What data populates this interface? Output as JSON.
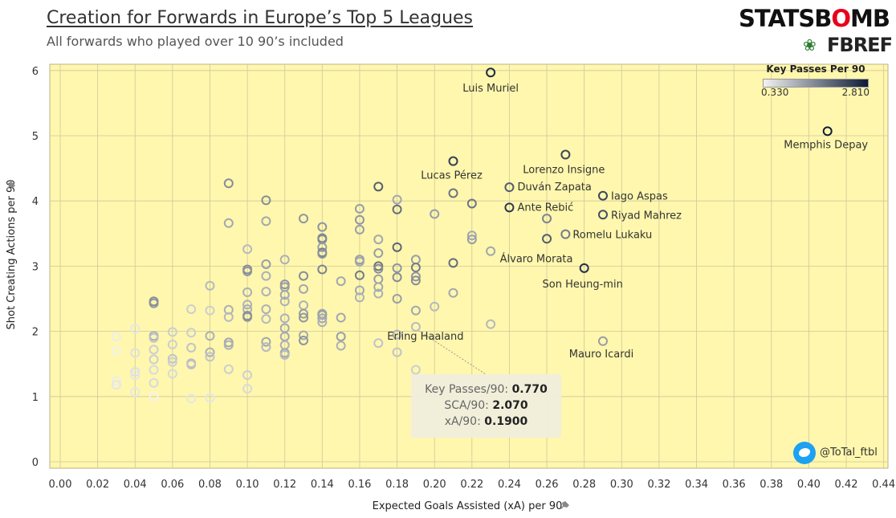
{
  "header": {
    "title": "Creation for Forwards in Europe’s Top 5 Leagues",
    "subtitle": "All forwards who played over 10 90’s included"
  },
  "logos": {
    "statsbomb_a": "STATSB",
    "statsbomb_o": "O",
    "statsbomb_b": "MB",
    "fbref": "FBREF"
  },
  "legend": {
    "title": "Key Passes Per 90",
    "min": "0.330",
    "max": "2.810",
    "color_low": "#f2f2f2",
    "color_high": "#0d1b36"
  },
  "tooltip": {
    "key_passes_label": "Key Passes/90:",
    "key_passes_value": "0.770",
    "sca_label": "SCA/90:",
    "sca_value": "2.070",
    "xa_label": "xA/90:",
    "xa_value": "0.1900"
  },
  "credit": {
    "handle": "@ToTal_ftbl"
  },
  "colors": {
    "plot_bg": "#fff7ad",
    "grid": "#cfc79a"
  },
  "chart_data": {
    "type": "scatter",
    "xlabel": "Expected Goals Assisted (xA) per 90",
    "ylabel": "Shot Creating Actions per 90",
    "xlim": [
      0.0,
      0.45
    ],
    "ylim": [
      -0.1,
      6.15
    ],
    "x_ticks": [
      "0.00",
      "0.02",
      "0.04",
      "0.06",
      "0.08",
      "0.10",
      "0.12",
      "0.14",
      "0.16",
      "0.18",
      "0.20",
      "0.22",
      "0.24",
      "0.26",
      "0.28",
      "0.30",
      "0.32",
      "0.34",
      "0.36",
      "0.38",
      "0.40",
      "0.42",
      "0.44"
    ],
    "y_ticks": [
      "0",
      "1",
      "2",
      "3",
      "4",
      "5",
      "6"
    ],
    "grid": true,
    "legend_position": "top-right",
    "color_encoding": "Key Passes Per 90",
    "labeled_points": [
      {
        "name": "Luis Muriel",
        "x": 0.23,
        "y": 5.97,
        "kp": 2.6
      },
      {
        "name": "Memphis Depay",
        "x": 0.41,
        "y": 5.07,
        "kp": 2.81
      },
      {
        "name": "Lorenzo Insigne",
        "x": 0.27,
        "y": 4.71,
        "kp": 2.2
      },
      {
        "name": "Lucas Pérez",
        "x": 0.21,
        "y": 4.61,
        "kp": 2.3
      },
      {
        "name": "Duván Zapata",
        "x": 0.24,
        "y": 4.21,
        "kp": 1.9
      },
      {
        "name": "Iago Aspas",
        "x": 0.29,
        "y": 4.08,
        "kp": 2.2
      },
      {
        "name": "Ante Rebić",
        "x": 0.24,
        "y": 3.9,
        "kp": 2.4
      },
      {
        "name": "Riyad Mahrez",
        "x": 0.29,
        "y": 3.79,
        "kp": 2.1
      },
      {
        "name": "Romelu Lukaku",
        "x": 0.27,
        "y": 3.49,
        "kp": 1.5
      },
      {
        "name": "Álvaro Morata",
        "x": 0.26,
        "y": 3.42,
        "kp": 1.9
      },
      {
        "name": "Son Heung-min",
        "x": 0.28,
        "y": 2.97,
        "kp": 2.5
      },
      {
        "name": "Mauro Icardi",
        "x": 0.29,
        "y": 1.85,
        "kp": 1.1
      },
      {
        "name": "Erling Haaland",
        "x": 0.19,
        "y": 2.07,
        "kp": 0.77
      }
    ],
    "points": [
      {
        "x": 0.03,
        "y": 1.92,
        "kp": 0.35
      },
      {
        "x": 0.03,
        "y": 1.71,
        "kp": 0.33
      },
      {
        "x": 0.03,
        "y": 1.24,
        "kp": 0.35
      },
      {
        "x": 0.03,
        "y": 1.18,
        "kp": 0.4
      },
      {
        "x": 0.04,
        "y": 2.04,
        "kp": 0.4
      },
      {
        "x": 0.04,
        "y": 1.67,
        "kp": 0.45
      },
      {
        "x": 0.04,
        "y": 1.38,
        "kp": 0.45
      },
      {
        "x": 0.04,
        "y": 1.33,
        "kp": 0.4
      },
      {
        "x": 0.04,
        "y": 1.07,
        "kp": 0.4
      },
      {
        "x": 0.05,
        "y": 2.46,
        "kp": 1.3
      },
      {
        "x": 0.05,
        "y": 2.43,
        "kp": 1.2
      },
      {
        "x": 0.05,
        "y": 1.93,
        "kp": 0.9
      },
      {
        "x": 0.05,
        "y": 1.9,
        "kp": 0.7
      },
      {
        "x": 0.05,
        "y": 1.72,
        "kp": 0.6
      },
      {
        "x": 0.05,
        "y": 1.57,
        "kp": 0.6
      },
      {
        "x": 0.05,
        "y": 1.41,
        "kp": 0.5
      },
      {
        "x": 0.05,
        "y": 1.21,
        "kp": 0.5
      },
      {
        "x": 0.05,
        "y": 1.0,
        "kp": 0.33
      },
      {
        "x": 0.06,
        "y": 1.99,
        "kp": 0.6
      },
      {
        "x": 0.06,
        "y": 1.8,
        "kp": 0.6
      },
      {
        "x": 0.06,
        "y": 1.58,
        "kp": 0.7
      },
      {
        "x": 0.06,
        "y": 1.53,
        "kp": 0.6
      },
      {
        "x": 0.06,
        "y": 1.35,
        "kp": 0.5
      },
      {
        "x": 0.07,
        "y": 2.34,
        "kp": 0.6
      },
      {
        "x": 0.07,
        "y": 1.98,
        "kp": 0.6
      },
      {
        "x": 0.07,
        "y": 1.75,
        "kp": 0.7
      },
      {
        "x": 0.07,
        "y": 1.51,
        "kp": 0.8
      },
      {
        "x": 0.07,
        "y": 1.49,
        "kp": 0.7
      },
      {
        "x": 0.07,
        "y": 0.97,
        "kp": 0.4
      },
      {
        "x": 0.08,
        "y": 2.7,
        "kp": 0.8
      },
      {
        "x": 0.08,
        "y": 2.32,
        "kp": 0.6
      },
      {
        "x": 0.08,
        "y": 1.93,
        "kp": 0.9
      },
      {
        "x": 0.08,
        "y": 1.68,
        "kp": 0.9
      },
      {
        "x": 0.08,
        "y": 1.61,
        "kp": 0.7
      },
      {
        "x": 0.08,
        "y": 0.98,
        "kp": 0.4
      },
      {
        "x": 0.09,
        "y": 4.27,
        "kp": 1.3
      },
      {
        "x": 0.09,
        "y": 3.66,
        "kp": 1.0
      },
      {
        "x": 0.09,
        "y": 2.33,
        "kp": 0.9
      },
      {
        "x": 0.09,
        "y": 2.22,
        "kp": 0.8
      },
      {
        "x": 0.09,
        "y": 1.83,
        "kp": 1.0
      },
      {
        "x": 0.09,
        "y": 1.79,
        "kp": 0.9
      },
      {
        "x": 0.09,
        "y": 1.42,
        "kp": 0.6
      },
      {
        "x": 0.1,
        "y": 3.26,
        "kp": 0.8
      },
      {
        "x": 0.1,
        "y": 2.95,
        "kp": 1.3
      },
      {
        "x": 0.1,
        "y": 2.92,
        "kp": 1.2
      },
      {
        "x": 0.1,
        "y": 2.6,
        "kp": 0.9
      },
      {
        "x": 0.1,
        "y": 2.41,
        "kp": 0.9
      },
      {
        "x": 0.1,
        "y": 2.34,
        "kp": 0.9
      },
      {
        "x": 0.1,
        "y": 2.24,
        "kp": 1.3
      },
      {
        "x": 0.1,
        "y": 2.22,
        "kp": 1.2
      },
      {
        "x": 0.1,
        "y": 1.33,
        "kp": 0.6
      },
      {
        "x": 0.1,
        "y": 1.12,
        "kp": 0.5
      },
      {
        "x": 0.11,
        "y": 4.01,
        "kp": 1.3
      },
      {
        "x": 0.11,
        "y": 3.69,
        "kp": 1.0
      },
      {
        "x": 0.11,
        "y": 3.03,
        "kp": 1.1
      },
      {
        "x": 0.11,
        "y": 2.85,
        "kp": 0.9
      },
      {
        "x": 0.11,
        "y": 2.61,
        "kp": 0.9
      },
      {
        "x": 0.11,
        "y": 2.34,
        "kp": 0.9
      },
      {
        "x": 0.11,
        "y": 2.19,
        "kp": 0.8
      },
      {
        "x": 0.11,
        "y": 1.84,
        "kp": 1.0
      },
      {
        "x": 0.11,
        "y": 1.76,
        "kp": 0.8
      },
      {
        "x": 0.12,
        "y": 3.1,
        "kp": 0.9
      },
      {
        "x": 0.12,
        "y": 2.72,
        "kp": 1.2
      },
      {
        "x": 0.12,
        "y": 2.68,
        "kp": 1.1
      },
      {
        "x": 0.12,
        "y": 2.56,
        "kp": 1.0
      },
      {
        "x": 0.12,
        "y": 2.46,
        "kp": 0.9
      },
      {
        "x": 0.12,
        "y": 2.2,
        "kp": 0.9
      },
      {
        "x": 0.12,
        "y": 2.05,
        "kp": 1.0
      },
      {
        "x": 0.12,
        "y": 1.92,
        "kp": 1.0
      },
      {
        "x": 0.12,
        "y": 1.79,
        "kp": 0.9
      },
      {
        "x": 0.12,
        "y": 1.67,
        "kp": 1.0
      },
      {
        "x": 0.12,
        "y": 1.64,
        "kp": 0.8
      },
      {
        "x": 0.13,
        "y": 3.73,
        "kp": 1.2
      },
      {
        "x": 0.13,
        "y": 2.85,
        "kp": 1.3
      },
      {
        "x": 0.13,
        "y": 2.65,
        "kp": 1.0
      },
      {
        "x": 0.13,
        "y": 2.4,
        "kp": 0.9
      },
      {
        "x": 0.13,
        "y": 2.27,
        "kp": 1.1
      },
      {
        "x": 0.13,
        "y": 2.21,
        "kp": 1.2
      },
      {
        "x": 0.13,
        "y": 1.94,
        "kp": 1.0
      },
      {
        "x": 0.13,
        "y": 1.86,
        "kp": 1.2
      },
      {
        "x": 0.14,
        "y": 3.6,
        "kp": 1.2
      },
      {
        "x": 0.14,
        "y": 3.43,
        "kp": 1.4
      },
      {
        "x": 0.14,
        "y": 3.41,
        "kp": 1.3
      },
      {
        "x": 0.14,
        "y": 3.29,
        "kp": 1.1
      },
      {
        "x": 0.14,
        "y": 3.21,
        "kp": 1.5
      },
      {
        "x": 0.14,
        "y": 3.19,
        "kp": 1.2
      },
      {
        "x": 0.14,
        "y": 2.95,
        "kp": 1.4
      },
      {
        "x": 0.14,
        "y": 2.27,
        "kp": 1.0
      },
      {
        "x": 0.14,
        "y": 2.25,
        "kp": 1.1
      },
      {
        "x": 0.14,
        "y": 2.2,
        "kp": 1.0
      },
      {
        "x": 0.14,
        "y": 2.14,
        "kp": 0.9
      },
      {
        "x": 0.15,
        "y": 2.77,
        "kp": 1.0
      },
      {
        "x": 0.15,
        "y": 2.21,
        "kp": 1.0
      },
      {
        "x": 0.15,
        "y": 1.92,
        "kp": 1.1
      },
      {
        "x": 0.15,
        "y": 1.78,
        "kp": 0.9
      },
      {
        "x": 0.16,
        "y": 3.88,
        "kp": 1.1
      },
      {
        "x": 0.16,
        "y": 3.71,
        "kp": 1.2
      },
      {
        "x": 0.16,
        "y": 3.56,
        "kp": 1.1
      },
      {
        "x": 0.16,
        "y": 3.1,
        "kp": 1.1
      },
      {
        "x": 0.16,
        "y": 3.07,
        "kp": 1.0
      },
      {
        "x": 0.16,
        "y": 2.86,
        "kp": 1.5
      },
      {
        "x": 0.16,
        "y": 2.63,
        "kp": 1.0
      },
      {
        "x": 0.16,
        "y": 2.52,
        "kp": 0.9
      },
      {
        "x": 0.17,
        "y": 4.22,
        "kp": 1.9
      },
      {
        "x": 0.17,
        "y": 3.41,
        "kp": 1.0
      },
      {
        "x": 0.17,
        "y": 3.2,
        "kp": 1.1
      },
      {
        "x": 0.17,
        "y": 3.0,
        "kp": 1.6
      },
      {
        "x": 0.17,
        "y": 2.96,
        "kp": 1.3
      },
      {
        "x": 0.17,
        "y": 2.8,
        "kp": 1.1
      },
      {
        "x": 0.17,
        "y": 2.68,
        "kp": 1.0
      },
      {
        "x": 0.17,
        "y": 2.58,
        "kp": 0.9
      },
      {
        "x": 0.17,
        "y": 1.82,
        "kp": 0.7
      },
      {
        "x": 0.18,
        "y": 4.02,
        "kp": 1.0
      },
      {
        "x": 0.18,
        "y": 3.87,
        "kp": 1.7
      },
      {
        "x": 0.18,
        "y": 3.29,
        "kp": 1.8
      },
      {
        "x": 0.18,
        "y": 2.97,
        "kp": 1.2
      },
      {
        "x": 0.18,
        "y": 2.83,
        "kp": 1.3
      },
      {
        "x": 0.18,
        "y": 2.5,
        "kp": 1.1
      },
      {
        "x": 0.18,
        "y": 1.95,
        "kp": 0.9
      },
      {
        "x": 0.18,
        "y": 1.68,
        "kp": 0.7
      },
      {
        "x": 0.19,
        "y": 3.1,
        "kp": 1.1
      },
      {
        "x": 0.19,
        "y": 2.98,
        "kp": 1.5
      },
      {
        "x": 0.19,
        "y": 2.84,
        "kp": 1.2
      },
      {
        "x": 0.19,
        "y": 2.78,
        "kp": 1.3
      },
      {
        "x": 0.19,
        "y": 2.32,
        "kp": 1.0
      },
      {
        "x": 0.19,
        "y": 1.41,
        "kp": 0.6
      },
      {
        "x": 0.2,
        "y": 3.8,
        "kp": 1.1
      },
      {
        "x": 0.2,
        "y": 2.38,
        "kp": 0.8
      },
      {
        "x": 0.21,
        "y": 4.12,
        "kp": 1.6
      },
      {
        "x": 0.21,
        "y": 3.05,
        "kp": 1.7
      },
      {
        "x": 0.21,
        "y": 2.59,
        "kp": 1.0
      },
      {
        "x": 0.22,
        "y": 3.96,
        "kp": 1.6
      },
      {
        "x": 0.22,
        "y": 3.47,
        "kp": 1.0
      },
      {
        "x": 0.22,
        "y": 3.41,
        "kp": 1.1
      },
      {
        "x": 0.23,
        "y": 3.23,
        "kp": 1.0
      },
      {
        "x": 0.23,
        "y": 2.11,
        "kp": 0.8
      },
      {
        "x": 0.26,
        "y": 3.73,
        "kp": 1.4
      }
    ]
  }
}
